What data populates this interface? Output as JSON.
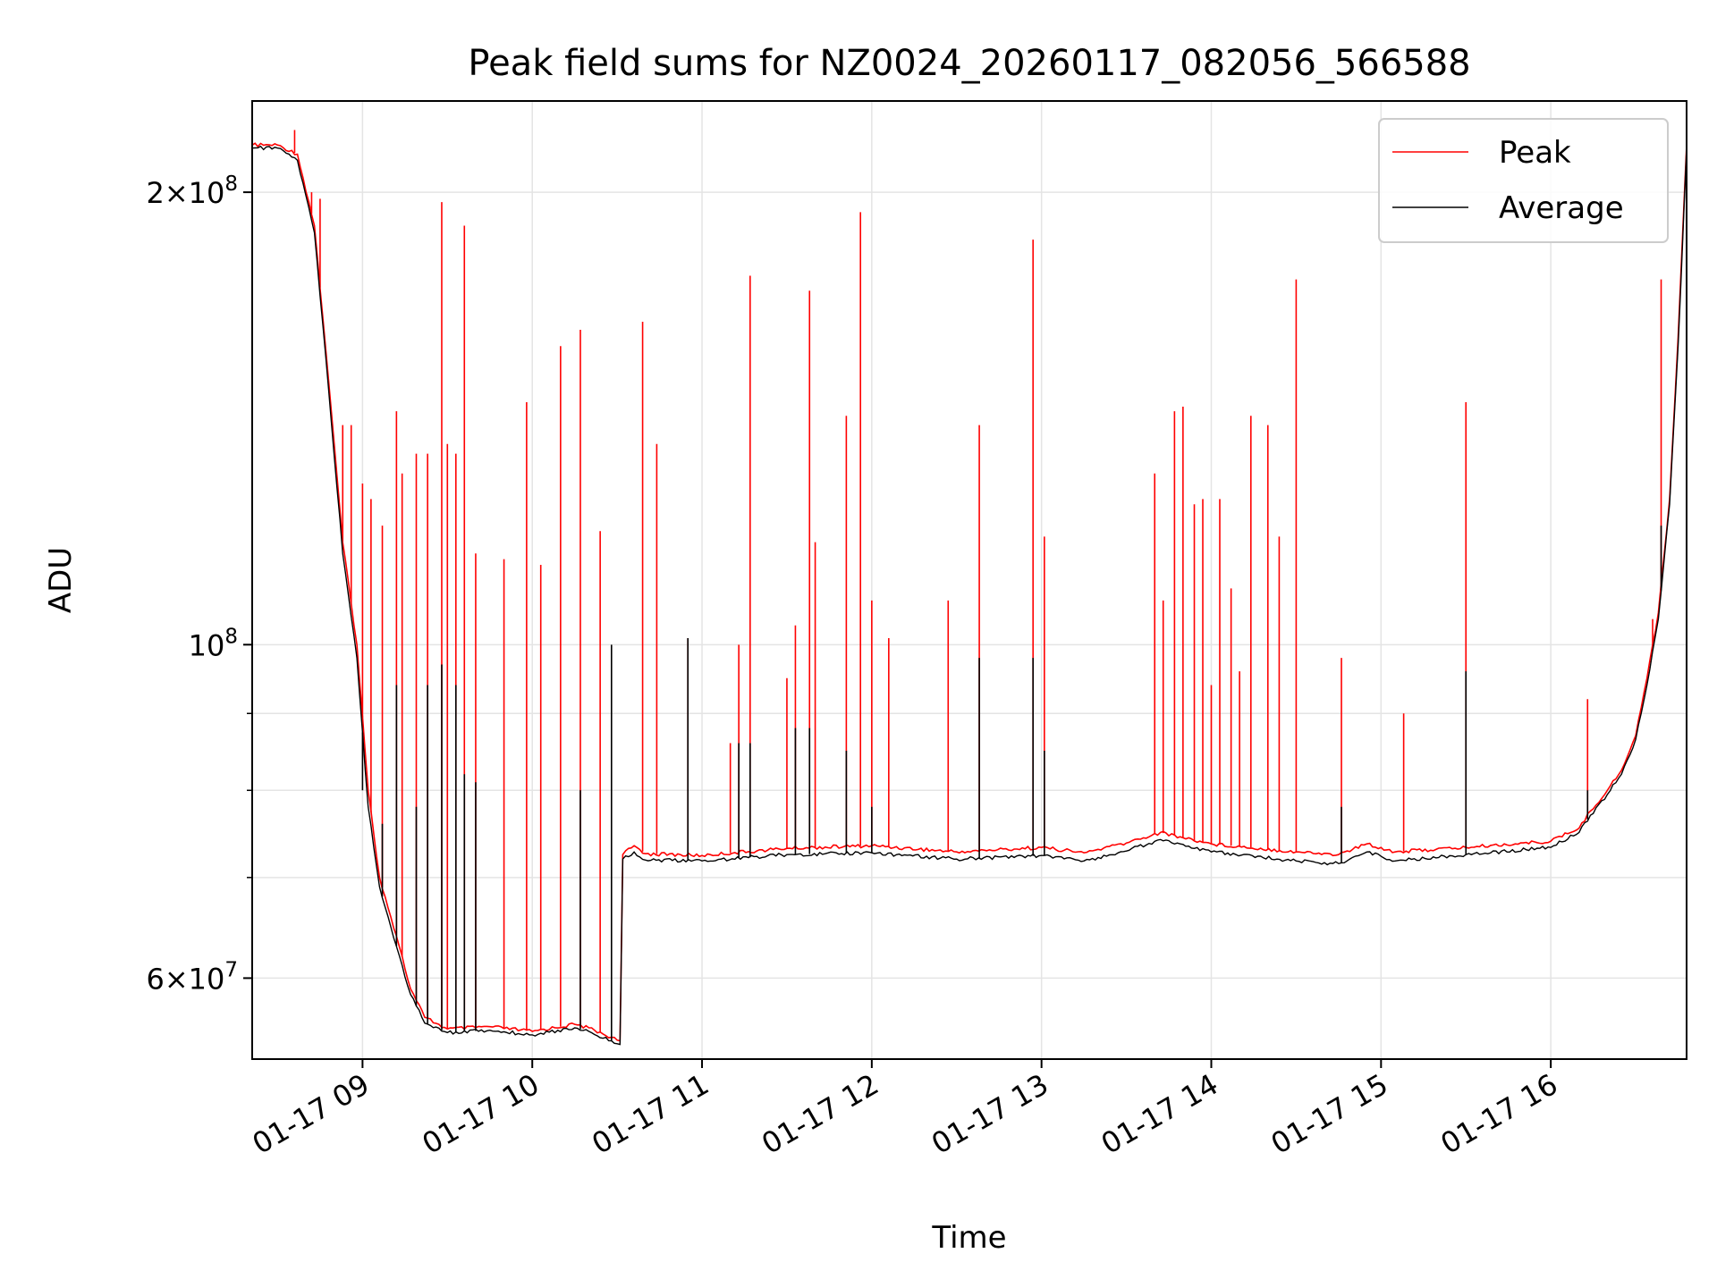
{
  "chart_data": {
    "type": "line",
    "title": "Peak field sums for NZ0024_20260117_082056_566588",
    "xlabel": "Time",
    "ylabel": "ADU",
    "yscale": "log",
    "ylim": [
      53000000,
      230000000
    ],
    "xlim": [
      "2026-01-17 08:21",
      "2026-01-17 16:48"
    ],
    "grid": true,
    "legend_position": "top-right",
    "x_tick_labels": [
      "01-17 09",
      "01-17 10",
      "01-17 11",
      "01-17 12",
      "01-17 13",
      "01-17 14",
      "01-17 15",
      "01-17 16"
    ],
    "x_ticks": [
      "2026-01-17 09:00",
      "2026-01-17 10:00",
      "2026-01-17 11:00",
      "2026-01-17 12:00",
      "2026-01-17 13:00",
      "2026-01-17 14:00",
      "2026-01-17 15:00",
      "2026-01-17 16:00"
    ],
    "y_tick_labels": [
      {
        "value": 200000000,
        "mantissa": "2",
        "exponent": "8"
      },
      {
        "value": 100000000,
        "mantissa": "",
        "exponent": "8"
      },
      {
        "value": 60000000,
        "mantissa": "6",
        "exponent": "7"
      }
    ],
    "y_minor_grid": [
      70000000,
      80000000,
      90000000
    ],
    "series": [
      {
        "name": "Peak",
        "color": "#ff0000",
        "baseline": [
          [
            "2026-01-17 08:21",
            215000000
          ],
          [
            "2026-01-17 08:30",
            215000000
          ],
          [
            "2026-01-17 08:37",
            212000000
          ],
          [
            "2026-01-17 08:43",
            190000000
          ],
          [
            "2026-01-17 08:48",
            150000000
          ],
          [
            "2026-01-17 08:53",
            117000000
          ],
          [
            "2026-01-17 08:58",
            100000000
          ],
          [
            "2026-01-17 09:02",
            80000000
          ],
          [
            "2026-01-17 09:06",
            70000000
          ],
          [
            "2026-01-17 09:12",
            64000000
          ],
          [
            "2026-01-17 09:17",
            59000000
          ],
          [
            "2026-01-17 09:22",
            56500000
          ],
          [
            "2026-01-17 09:30",
            55500000
          ],
          [
            "2026-01-17 09:45",
            55700000
          ],
          [
            "2026-01-17 10:00",
            55300000
          ],
          [
            "2026-01-17 10:15",
            55900000
          ],
          [
            "2026-01-17 10:20",
            55600000
          ],
          [
            "2026-01-17 10:28",
            54800000
          ],
          [
            "2026-01-17 10:31",
            54500000
          ],
          [
            "2026-01-17 10:32",
            72500000
          ],
          [
            "2026-01-17 10:36",
            73500000
          ],
          [
            "2026-01-17 10:40",
            72600000
          ],
          [
            "2026-01-17 11:00",
            72400000
          ],
          [
            "2026-01-17 11:30",
            73200000
          ],
          [
            "2026-01-17 12:00",
            73500000
          ],
          [
            "2026-01-17 12:30",
            72800000
          ],
          [
            "2026-01-17 13:00",
            73300000
          ],
          [
            "2026-01-17 13:15",
            72700000
          ],
          [
            "2026-01-17 13:30",
            73800000
          ],
          [
            "2026-01-17 13:42",
            75000000
          ],
          [
            "2026-01-17 14:00",
            73700000
          ],
          [
            "2026-01-17 14:30",
            72800000
          ],
          [
            "2026-01-17 14:45",
            72500000
          ],
          [
            "2026-01-17 14:55",
            73700000
          ],
          [
            "2026-01-17 15:05",
            72800000
          ],
          [
            "2026-01-17 15:30",
            73300000
          ],
          [
            "2026-01-17 16:00",
            74000000
          ],
          [
            "2026-01-17 16:10",
            75500000
          ],
          [
            "2026-01-17 16:14",
            77500000
          ],
          [
            "2026-01-17 16:20",
            80000000
          ],
          [
            "2026-01-17 16:25",
            82500000
          ],
          [
            "2026-01-17 16:30",
            87000000
          ],
          [
            "2026-01-17 16:34",
            95000000
          ],
          [
            "2026-01-17 16:38",
            105000000
          ],
          [
            "2026-01-17 16:42",
            125000000
          ],
          [
            "2026-01-17 16:45",
            160000000
          ],
          [
            "2026-01-17 16:48",
            215000000
          ]
        ],
        "spikes": [
          [
            "2026-01-17 08:36",
            220000000
          ],
          [
            "2026-01-17 08:42",
            200000000
          ],
          [
            "2026-01-17 08:45",
            198000000
          ],
          [
            "2026-01-17 08:53",
            140000000
          ],
          [
            "2026-01-17 08:56",
            140000000
          ],
          [
            "2026-01-17 09:00",
            128000000
          ],
          [
            "2026-01-17 09:03",
            125000000
          ],
          [
            "2026-01-17 09:07",
            120000000
          ],
          [
            "2026-01-17 09:12",
            143000000
          ],
          [
            "2026-01-17 09:14",
            130000000
          ],
          [
            "2026-01-17 09:19",
            134000000
          ],
          [
            "2026-01-17 09:23",
            134000000
          ],
          [
            "2026-01-17 09:28",
            197000000
          ],
          [
            "2026-01-17 09:30",
            136000000
          ],
          [
            "2026-01-17 09:33",
            134000000
          ],
          [
            "2026-01-17 09:36",
            190000000
          ],
          [
            "2026-01-17 09:40",
            115000000
          ],
          [
            "2026-01-17 09:50",
            114000000
          ],
          [
            "2026-01-17 09:58",
            145000000
          ],
          [
            "2026-01-17 10:03",
            113000000
          ],
          [
            "2026-01-17 10:10",
            158000000
          ],
          [
            "2026-01-17 10:17",
            162000000
          ],
          [
            "2026-01-17 10:24",
            119000000
          ],
          [
            "2026-01-17 10:39",
            164000000
          ],
          [
            "2026-01-17 10:44",
            136000000
          ],
          [
            "2026-01-17 10:55",
            101000000
          ],
          [
            "2026-01-17 11:10",
            86000000
          ],
          [
            "2026-01-17 11:13",
            100000000
          ],
          [
            "2026-01-17 11:17",
            176000000
          ],
          [
            "2026-01-17 11:30",
            95000000
          ],
          [
            "2026-01-17 11:33",
            103000000
          ],
          [
            "2026-01-17 11:38",
            172000000
          ],
          [
            "2026-01-17 11:40",
            117000000
          ],
          [
            "2026-01-17 11:51",
            142000000
          ],
          [
            "2026-01-17 11:56",
            194000000
          ],
          [
            "2026-01-17 12:00",
            107000000
          ],
          [
            "2026-01-17 12:06",
            101000000
          ],
          [
            "2026-01-17 12:27",
            107000000
          ],
          [
            "2026-01-17 12:38",
            140000000
          ],
          [
            "2026-01-17 12:57",
            186000000
          ],
          [
            "2026-01-17 13:01",
            118000000
          ],
          [
            "2026-01-17 13:40",
            130000000
          ],
          [
            "2026-01-17 13:43",
            107000000
          ],
          [
            "2026-01-17 13:47",
            143000000
          ],
          [
            "2026-01-17 13:50",
            144000000
          ],
          [
            "2026-01-17 13:54",
            124000000
          ],
          [
            "2026-01-17 13:57",
            125000000
          ],
          [
            "2026-01-17 14:00",
            94000000
          ],
          [
            "2026-01-17 14:03",
            125000000
          ],
          [
            "2026-01-17 14:07",
            109000000
          ],
          [
            "2026-01-17 14:10",
            96000000
          ],
          [
            "2026-01-17 14:14",
            142000000
          ],
          [
            "2026-01-17 14:20",
            140000000
          ],
          [
            "2026-01-17 14:24",
            118000000
          ],
          [
            "2026-01-17 14:30",
            175000000
          ],
          [
            "2026-01-17 14:46",
            98000000
          ],
          [
            "2026-01-17 15:08",
            90000000
          ],
          [
            "2026-01-17 15:30",
            145000000
          ],
          [
            "2026-01-17 16:13",
            92000000
          ],
          [
            "2026-01-17 16:36",
            104000000
          ],
          [
            "2026-01-17 16:39",
            175000000
          ]
        ]
      },
      {
        "name": "Average",
        "color": "#000000",
        "baseline": [
          [
            "2026-01-17 08:21",
            214000000
          ],
          [
            "2026-01-17 08:30",
            214000000
          ],
          [
            "2026-01-17 08:37",
            210000000
          ],
          [
            "2026-01-17 08:43",
            188000000
          ],
          [
            "2026-01-17 08:48",
            148000000
          ],
          [
            "2026-01-17 08:53",
            115000000
          ],
          [
            "2026-01-17 08:58",
            98000000
          ],
          [
            "2026-01-17 09:02",
            78000000
          ],
          [
            "2026-01-17 09:06",
            69000000
          ],
          [
            "2026-01-17 09:12",
            63000000
          ],
          [
            "2026-01-17 09:17",
            58500000
          ],
          [
            "2026-01-17 09:22",
            56000000
          ],
          [
            "2026-01-17 09:30",
            55200000
          ],
          [
            "2026-01-17 09:45",
            55400000
          ],
          [
            "2026-01-17 10:00",
            55000000
          ],
          [
            "2026-01-17 10:15",
            55600000
          ],
          [
            "2026-01-17 10:20",
            55300000
          ],
          [
            "2026-01-17 10:28",
            54500000
          ],
          [
            "2026-01-17 10:31",
            54200000
          ],
          [
            "2026-01-17 10:32",
            72000000
          ],
          [
            "2026-01-17 10:36",
            72800000
          ],
          [
            "2026-01-17 10:40",
            71900000
          ],
          [
            "2026-01-17 11:00",
            71800000
          ],
          [
            "2026-01-17 11:30",
            72500000
          ],
          [
            "2026-01-17 12:00",
            72700000
          ],
          [
            "2026-01-17 12:30",
            72000000
          ],
          [
            "2026-01-17 13:00",
            72400000
          ],
          [
            "2026-01-17 13:15",
            71800000
          ],
          [
            "2026-01-17 13:30",
            72900000
          ],
          [
            "2026-01-17 13:42",
            74200000
          ],
          [
            "2026-01-17 14:00",
            72800000
          ],
          [
            "2026-01-17 14:30",
            71800000
          ],
          [
            "2026-01-17 14:45",
            71500000
          ],
          [
            "2026-01-17 14:55",
            72800000
          ],
          [
            "2026-01-17 15:05",
            71800000
          ],
          [
            "2026-01-17 15:30",
            72500000
          ],
          [
            "2026-01-17 16:00",
            73300000
          ],
          [
            "2026-01-17 16:10",
            75000000
          ],
          [
            "2026-01-17 16:14",
            77000000
          ],
          [
            "2026-01-17 16:20",
            79500000
          ],
          [
            "2026-01-17 16:25",
            82000000
          ],
          [
            "2026-01-17 16:30",
            86500000
          ],
          [
            "2026-01-17 16:34",
            94000000
          ],
          [
            "2026-01-17 16:38",
            104000000
          ],
          [
            "2026-01-17 16:42",
            124000000
          ],
          [
            "2026-01-17 16:45",
            158000000
          ],
          [
            "2026-01-17 16:48",
            214000000
          ]
        ],
        "spikes": [
          [
            "2026-01-17 09:00",
            80000000
          ],
          [
            "2026-01-17 09:07",
            76000000
          ],
          [
            "2026-01-17 09:12",
            94000000
          ],
          [
            "2026-01-17 09:19",
            78000000
          ],
          [
            "2026-01-17 09:23",
            94000000
          ],
          [
            "2026-01-17 09:28",
            97000000
          ],
          [
            "2026-01-17 09:33",
            94000000
          ],
          [
            "2026-01-17 09:36",
            82000000
          ],
          [
            "2026-01-17 09:40",
            81000000
          ],
          [
            "2026-01-17 10:17",
            80000000
          ],
          [
            "2026-01-17 10:28",
            100000000
          ],
          [
            "2026-01-17 10:55",
            101000000
          ],
          [
            "2026-01-17 11:13",
            86000000
          ],
          [
            "2026-01-17 11:17",
            86000000
          ],
          [
            "2026-01-17 11:33",
            88000000
          ],
          [
            "2026-01-17 11:38",
            88000000
          ],
          [
            "2026-01-17 11:51",
            85000000
          ],
          [
            "2026-01-17 12:00",
            78000000
          ],
          [
            "2026-01-17 12:38",
            98000000
          ],
          [
            "2026-01-17 12:57",
            98000000
          ],
          [
            "2026-01-17 13:01",
            85000000
          ],
          [
            "2026-01-17 14:46",
            78000000
          ],
          [
            "2026-01-17 15:30",
            96000000
          ],
          [
            "2026-01-17 16:13",
            80000000
          ],
          [
            "2026-01-17 16:39",
            120000000
          ]
        ]
      }
    ]
  }
}
